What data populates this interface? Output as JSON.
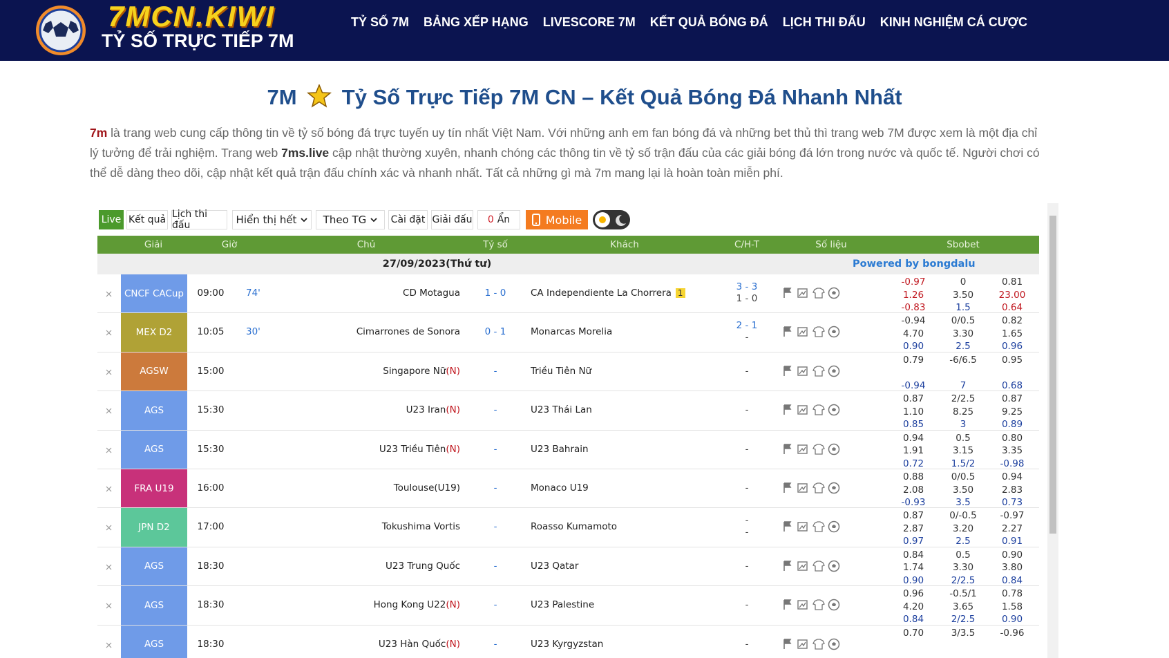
{
  "header": {
    "logo_title": "7MCN.KIWI",
    "logo_subtitle": "TỶ SỐ TRỰC TIẾP 7M",
    "nav": [
      "TỶ SỐ 7M",
      "BẢNG XẾP HẠNG",
      "LIVESCORE 7M",
      "KẾT QUẢ BÓNG ĐÁ",
      "LỊCH THI ĐẤU",
      "KINH NGHIỆM CÁ CƯỢC"
    ]
  },
  "article": {
    "title_prefix": "7M",
    "title_main": "Tỷ Số Trực Tiếp 7M CN – Kết Quả Bóng Đá Nhanh Nhất",
    "intro": [
      {
        "text": "7m",
        "style": "brand"
      },
      {
        "text": " là trang web cung cấp thông tin về tỷ số bóng đá trực tuyến uy tín nhất Việt Nam. Với những anh em fan bóng đá và những bet thủ thì trang web 7M được xem là một địa chỉ lý tưởng để trải nghiệm. Trang web ",
        "style": "plain"
      },
      {
        "text": "7ms.live",
        "style": "bold"
      },
      {
        "text": " cập nhật thường xuyên, nhanh chóng các thông tin về tỷ số trận đấu của các giải bóng đá lớn trong nước và quốc tế. Người chơi có thể dễ dàng theo dõi, cập nhật kết quả trận đấu chính xác và nhanh nhất. Tất cả những gì mà 7m mang lại là hoàn toàn miễn phí.",
        "style": "plain"
      }
    ]
  },
  "toolbar": {
    "live": "Live",
    "results": "Kết quả",
    "schedule": "Lịch thi đấu",
    "show_all": "Hiển thị hết",
    "sort": "Theo TG",
    "settings": "Cài đặt",
    "leagues": "Giải đấu",
    "hidden_count": "0",
    "hidden_label": "Ẩn",
    "mobile": "Mobile"
  },
  "table": {
    "columns": [
      "Giải",
      "Giờ",
      "Chủ",
      "Tỷ số",
      "Khách",
      "C/H-T",
      "Số liệu",
      "Sbobet"
    ],
    "date": "27/09/2023(Thứ tư)",
    "powered_by": "Powered by bongdalu",
    "rows": [
      {
        "league": "CNCF CACup",
        "league_color": "#6f9be8",
        "time": "09:00",
        "minute": "74'",
        "home": "CD Motagua",
        "score": "1 - 0",
        "away": "CA Independiente La Chorrera",
        "away_badge": "1",
        "cht": [
          "3 - 3",
          "1 - 0"
        ],
        "odds": [
          [
            "-0.97",
            "0",
            "0.81"
          ],
          [
            "1.26",
            "3.50",
            "23.00"
          ],
          [
            "-0.83",
            "1.5",
            "0.64"
          ]
        ]
      },
      {
        "league": "MEX D2",
        "league_color": "#b0a236",
        "time": "10:05",
        "minute": "30'",
        "home": "Cimarrones de Sonora",
        "score": "0 - 1",
        "away": "Monarcas Morelia",
        "cht": [
          "2 - 1",
          "-"
        ],
        "odds": [
          [
            "-0.94",
            "0/0.5",
            "0.82"
          ],
          [
            "4.70",
            "3.30",
            "1.65"
          ],
          [
            "0.90",
            "2.5",
            "0.96"
          ]
        ]
      },
      {
        "league": "AGSW",
        "league_color": "#cc7a3c",
        "time": "15:00",
        "home": "Singapore Nữ",
        "home_suffix": "(N)",
        "score": "-",
        "away": "Triều Tiên Nữ",
        "cht": [
          "-"
        ],
        "odds": [
          [
            "0.79",
            "-6/6.5",
            "0.95"
          ],
          null,
          [
            "-0.94",
            "7",
            "0.68"
          ]
        ]
      },
      {
        "league": "AGS",
        "league_color": "#6f9be8",
        "time": "15:30",
        "home": "U23 Iran",
        "home_suffix": "(N)",
        "score": "-",
        "away": "U23 Thái Lan",
        "cht": [
          "-"
        ],
        "odds": [
          [
            "0.87",
            "2/2.5",
            "0.87"
          ],
          [
            "1.10",
            "8.25",
            "9.25"
          ],
          [
            "0.85",
            "3",
            "0.89"
          ]
        ]
      },
      {
        "league": "AGS",
        "league_color": "#6f9be8",
        "time": "15:30",
        "home": "U23 Triều Tiên",
        "home_suffix": "(N)",
        "score": "-",
        "away": "U23 Bahrain",
        "cht": [
          "-"
        ],
        "odds": [
          [
            "0.94",
            "0.5",
            "0.80"
          ],
          [
            "1.91",
            "3.15",
            "3.35"
          ],
          [
            "0.72",
            "1.5/2",
            "-0.98"
          ]
        ]
      },
      {
        "league": "FRA U19",
        "league_color": "#c8317a",
        "time": "16:00",
        "home": "Toulouse(U19)",
        "score": "-",
        "away": "Monaco U19",
        "cht": [
          "-"
        ],
        "odds": [
          [
            "0.88",
            "0/0.5",
            "0.94"
          ],
          [
            "2.08",
            "3.50",
            "2.83"
          ],
          [
            "-0.93",
            "3.5",
            "0.73"
          ]
        ]
      },
      {
        "league": "JPN D2",
        "league_color": "#5cc79a",
        "time": "17:00",
        "home": "Tokushima Vortis",
        "score": "-",
        "away": "Roasso Kumamoto",
        "cht": [
          "-",
          "-"
        ],
        "odds": [
          [
            "0.87",
            "0/-0.5",
            "-0.97"
          ],
          [
            "2.87",
            "3.20",
            "2.27"
          ],
          [
            "0.97",
            "2.5",
            "0.91"
          ]
        ]
      },
      {
        "league": "AGS",
        "league_color": "#6f9be8",
        "time": "18:30",
        "home": "U23 Trung Quốc",
        "score": "-",
        "away": "U23 Qatar",
        "cht": [
          "-"
        ],
        "odds": [
          [
            "0.84",
            "0.5",
            "0.90"
          ],
          [
            "1.74",
            "3.30",
            "3.80"
          ],
          [
            "0.90",
            "2/2.5",
            "0.84"
          ]
        ]
      },
      {
        "league": "AGS",
        "league_color": "#6f9be8",
        "time": "18:30",
        "home": "Hong Kong U22",
        "home_suffix": "(N)",
        "score": "-",
        "away": "U23 Palestine",
        "cht": [
          "-"
        ],
        "odds": [
          [
            "0.96",
            "-0.5/1",
            "0.78"
          ],
          [
            "4.20",
            "3.65",
            "1.58"
          ],
          [
            "0.84",
            "2/2.5",
            "0.90"
          ]
        ]
      },
      {
        "league": "AGS",
        "league_color": "#6f9be8",
        "time": "18:30",
        "home": "U23 Hàn Quốc",
        "home_suffix": "(N)",
        "score": "-",
        "away": "U23 Kyrgyzstan",
        "cht": [
          "-"
        ],
        "odds": [
          [
            "0.70",
            "3/3.5",
            "-0.96"
          ]
        ]
      }
    ]
  }
}
